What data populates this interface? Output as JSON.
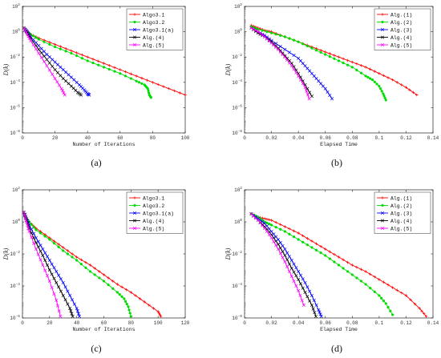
{
  "chart_data": [
    {
      "type": "line",
      "caption": "(a)",
      "ylabel": "D(k)",
      "xlabel": "Number of Iterations",
      "xlim": [
        0,
        100
      ],
      "xticks": [
        0,
        20,
        40,
        60,
        80,
        100
      ],
      "xtick_labels": [
        "0",
        "20",
        "40",
        "60",
        "80",
        "100"
      ],
      "ylim_log10": [
        -8,
        2
      ],
      "yscale": "log",
      "yticks_exp": [
        -8,
        -6,
        -4,
        -2,
        0,
        2
      ],
      "legend_position": "top-right",
      "colors": [
        "#ff0000",
        "#00dd00",
        "#0000ff",
        "#000000",
        "#ff00ff"
      ],
      "markers": [
        "plus",
        "circle",
        "x",
        "x",
        "x"
      ],
      "legend": [
        "Algo3.1",
        "Algo3.2",
        "Algo3.1(a)",
        "Alg.(4)",
        "Alg.(5)"
      ],
      "series": [
        {
          "name": "Algo3.1",
          "x": [
            1,
            2,
            5,
            10,
            20,
            30,
            40,
            50,
            60,
            70,
            80,
            90,
            100
          ],
          "y_log10": [
            0.3,
            0.1,
            -0.2,
            -0.5,
            -1.0,
            -1.5,
            -2.0,
            -2.5,
            -3.0,
            -3.5,
            -4.0,
            -4.5,
            -5.0
          ]
        },
        {
          "name": "Algo3.2",
          "x": [
            1,
            2,
            5,
            10,
            20,
            30,
            40,
            50,
            60,
            70,
            75,
            77,
            78,
            79
          ],
          "y_log10": [
            0.3,
            0.1,
            -0.2,
            -0.6,
            -1.2,
            -1.7,
            -2.3,
            -2.8,
            -3.3,
            -3.9,
            -4.2,
            -4.5,
            -5.0,
            -5.2
          ]
        },
        {
          "name": "Algo3.1(a)",
          "x": [
            1,
            3,
            5,
            10,
            15,
            20,
            25,
            30,
            35,
            38,
            40,
            41
          ],
          "y_log10": [
            0.3,
            0.0,
            -0.4,
            -1.1,
            -1.8,
            -2.4,
            -3.0,
            -3.6,
            -4.2,
            -4.6,
            -4.9,
            -5.0
          ]
        },
        {
          "name": "Alg.(4)",
          "x": [
            1,
            3,
            5,
            10,
            15,
            20,
            25,
            30,
            34,
            36
          ],
          "y_log10": [
            0.3,
            -0.1,
            -0.5,
            -1.4,
            -2.2,
            -3.0,
            -3.7,
            -4.3,
            -4.8,
            -5.0
          ]
        },
        {
          "name": "Alg.(5)",
          "x": [
            1,
            3,
            5,
            10,
            15,
            20,
            24,
            26
          ],
          "y_log10": [
            0.3,
            -0.2,
            -0.7,
            -1.7,
            -2.7,
            -3.7,
            -4.5,
            -5.0
          ]
        }
      ]
    },
    {
      "type": "line",
      "caption": "(b)",
      "ylabel": "D(k)",
      "xlabel": "Elapsed Time",
      "xlim": [
        0,
        0.14
      ],
      "xticks": [
        0,
        0.02,
        0.04,
        0.06,
        0.08,
        0.1,
        0.12,
        0.14
      ],
      "xtick_labels": [
        "0",
        "0.02",
        "0.04",
        "0.06",
        "0.08",
        "0.1",
        "0.12",
        "0.14"
      ],
      "ylim_log10": [
        -8,
        2
      ],
      "yscale": "log",
      "yticks_exp": [
        -8,
        -6,
        -4,
        -2,
        0,
        2
      ],
      "legend_position": "top-right",
      "colors": [
        "#ff0000",
        "#00dd00",
        "#0000ff",
        "#000000",
        "#ff00ff"
      ],
      "markers": [
        "plus",
        "circle",
        "x",
        "x",
        "x"
      ],
      "legend": [
        "Alg.(1)",
        "Alg.(2)",
        "Alg.(3)",
        "Alg.(4)",
        "Alg.(5)"
      ],
      "series": [
        {
          "name": "Alg.(1)",
          "x": [
            0.005,
            0.01,
            0.015,
            0.02,
            0.03,
            0.04,
            0.05,
            0.06,
            0.07,
            0.08,
            0.09,
            0.1,
            0.11,
            0.12,
            0.128
          ],
          "y_log10": [
            0.5,
            0.3,
            0.1,
            0.0,
            -0.4,
            -0.8,
            -1.2,
            -1.6,
            -2.0,
            -2.4,
            -2.8,
            -3.3,
            -3.8,
            -4.4,
            -5.0
          ]
        },
        {
          "name": "Alg.(2)",
          "x": [
            0.005,
            0.01,
            0.02,
            0.03,
            0.04,
            0.05,
            0.06,
            0.07,
            0.08,
            0.09,
            0.095,
            0.1,
            0.103,
            0.105
          ],
          "y_log10": [
            0.4,
            0.2,
            -0.1,
            -0.4,
            -0.8,
            -1.3,
            -1.8,
            -2.3,
            -2.8,
            -3.5,
            -3.8,
            -4.3,
            -4.9,
            -5.4
          ]
        },
        {
          "name": "Alg.(3)",
          "x": [
            0.005,
            0.01,
            0.015,
            0.02,
            0.03,
            0.04,
            0.045,
            0.05,
            0.055,
            0.06,
            0.065
          ],
          "y_log10": [
            0.3,
            0.0,
            -0.3,
            -0.7,
            -1.4,
            -2.1,
            -2.7,
            -3.3,
            -3.9,
            -4.5,
            -5.3
          ]
        },
        {
          "name": "Alg.(4)",
          "x": [
            0.005,
            0.01,
            0.015,
            0.02,
            0.025,
            0.03,
            0.035,
            0.04,
            0.045,
            0.05
          ],
          "y_log10": [
            0.3,
            -0.1,
            -0.4,
            -0.8,
            -1.3,
            -1.9,
            -2.5,
            -3.3,
            -4.2,
            -5.1
          ]
        },
        {
          "name": "Alg.(5)",
          "x": [
            0.005,
            0.01,
            0.015,
            0.02,
            0.025,
            0.03,
            0.035,
            0.04,
            0.045,
            0.048
          ],
          "y_log10": [
            0.3,
            0.0,
            -0.4,
            -0.9,
            -1.4,
            -2.0,
            -2.7,
            -3.5,
            -4.4,
            -5.3
          ]
        }
      ]
    },
    {
      "type": "line",
      "caption": "(c)",
      "ylabel": "D(k)",
      "xlabel": "Number of Iterations",
      "xlim": [
        0,
        120
      ],
      "xticks": [
        0,
        20,
        40,
        60,
        80,
        100,
        120
      ],
      "xtick_labels": [
        "0",
        "20",
        "40",
        "60",
        "80",
        "100",
        "120"
      ],
      "ylim_log10": [
        -6,
        2
      ],
      "yscale": "log",
      "yticks_exp": [
        -6,
        -4,
        -2,
        0,
        2
      ],
      "legend_position": "top-right",
      "colors": [
        "#ff0000",
        "#00dd00",
        "#0000ff",
        "#000000",
        "#ff00ff"
      ],
      "markers": [
        "plus",
        "circle",
        "x",
        "x",
        "x"
      ],
      "legend": [
        "Algo3.1",
        "Algo3.2",
        "Algo3.1(a)",
        "Alg.(4)",
        "Alg.(5)"
      ],
      "series": [
        {
          "name": "Algo3.1",
          "x": [
            1,
            2,
            5,
            10,
            20,
            30,
            40,
            50,
            60,
            70,
            80,
            90,
            100,
            102
          ],
          "y_log10": [
            0.6,
            0.3,
            0.0,
            -0.4,
            -1.0,
            -1.6,
            -2.2,
            -2.7,
            -3.3,
            -3.9,
            -4.4,
            -5.0,
            -5.6,
            -5.9
          ]
        },
        {
          "name": "Algo3.2",
          "x": [
            1,
            2,
            5,
            10,
            20,
            30,
            40,
            50,
            60,
            70,
            75,
            78,
            80
          ],
          "y_log10": [
            0.6,
            0.3,
            0.0,
            -0.5,
            -1.1,
            -1.8,
            -2.4,
            -3.1,
            -3.7,
            -4.4,
            -4.8,
            -5.3,
            -5.9
          ]
        },
        {
          "name": "Algo3.1(a)",
          "x": [
            1,
            3,
            5,
            10,
            15,
            20,
            25,
            30,
            35,
            40,
            42
          ],
          "y_log10": [
            0.6,
            0.2,
            -0.2,
            -1.0,
            -1.7,
            -2.4,
            -3.1,
            -3.8,
            -4.6,
            -5.4,
            -5.9
          ]
        },
        {
          "name": "Alg.(4)",
          "x": [
            1,
            3,
            5,
            10,
            15,
            20,
            25,
            30,
            35,
            37
          ],
          "y_log10": [
            0.6,
            0.1,
            -0.4,
            -1.3,
            -2.1,
            -3.0,
            -3.8,
            -4.6,
            -5.4,
            -5.9
          ]
        },
        {
          "name": "Alg.(5)",
          "x": [
            1,
            3,
            5,
            10,
            15,
            20,
            25,
            28
          ],
          "y_log10": [
            0.6,
            0.0,
            -0.6,
            -1.7,
            -2.7,
            -3.7,
            -4.9,
            -5.9
          ]
        }
      ]
    },
    {
      "type": "line",
      "caption": "(d)",
      "ylabel": "D(k)",
      "xlabel": "Elapsed Time",
      "xlim": [
        0,
        0.14
      ],
      "xticks": [
        0,
        0.02,
        0.04,
        0.06,
        0.08,
        0.1,
        0.12,
        0.14
      ],
      "xtick_labels": [
        "0",
        "0.02",
        "0.04",
        "0.06",
        "0.08",
        "0.1",
        "0.12",
        "0.14"
      ],
      "ylim_log10": [
        -6,
        2
      ],
      "yscale": "log",
      "yticks_exp": [
        -6,
        -4,
        -2,
        0,
        2
      ],
      "legend_position": "top-right",
      "colors": [
        "#ff0000",
        "#00dd00",
        "#0000ff",
        "#000000",
        "#ff00ff"
      ],
      "markers": [
        "plus",
        "circle",
        "x",
        "x",
        "x"
      ],
      "legend": [
        "Alg.(1)",
        "Alg.(2)",
        "Alg.(3)",
        "Alg.(4)",
        "Alg.(5)"
      ],
      "series": [
        {
          "name": "Alg.(1)",
          "x": [
            0.005,
            0.01,
            0.015,
            0.02,
            0.03,
            0.04,
            0.05,
            0.06,
            0.07,
            0.08,
            0.09,
            0.1,
            0.11,
            0.12,
            0.13,
            0.135
          ],
          "y_log10": [
            0.5,
            0.3,
            0.2,
            0.1,
            -0.3,
            -0.7,
            -1.2,
            -1.7,
            -2.2,
            -2.7,
            -3.1,
            -3.6,
            -4.1,
            -4.6,
            -5.4,
            -5.9
          ]
        },
        {
          "name": "Alg.(2)",
          "x": [
            0.005,
            0.01,
            0.015,
            0.02,
            0.03,
            0.04,
            0.05,
            0.06,
            0.07,
            0.08,
            0.09,
            0.1,
            0.105,
            0.11
          ],
          "y_log10": [
            0.5,
            0.3,
            0.0,
            -0.2,
            -0.6,
            -1.1,
            -1.6,
            -2.1,
            -2.7,
            -3.3,
            -3.9,
            -4.6,
            -5.1,
            -5.8
          ]
        },
        {
          "name": "Alg.(3)",
          "x": [
            0.005,
            0.01,
            0.015,
            0.02,
            0.025,
            0.03,
            0.035,
            0.04,
            0.045,
            0.05,
            0.055,
            0.057
          ],
          "y_log10": [
            0.5,
            0.2,
            -0.1,
            -0.6,
            -1.1,
            -1.7,
            -2.4,
            -3.1,
            -3.8,
            -4.6,
            -5.5,
            -5.9
          ]
        },
        {
          "name": "Alg.(4)",
          "x": [
            0.005,
            0.01,
            0.015,
            0.02,
            0.025,
            0.03,
            0.035,
            0.04,
            0.045,
            0.05,
            0.053
          ],
          "y_log10": [
            0.5,
            0.1,
            -0.3,
            -0.8,
            -1.4,
            -2.1,
            -2.9,
            -3.6,
            -4.4,
            -5.2,
            -5.9
          ]
        },
        {
          "name": "Alg.(5)",
          "x": [
            0.005,
            0.01,
            0.015,
            0.02,
            0.025,
            0.03,
            0.035,
            0.04,
            0.044
          ],
          "y_log10": [
            0.5,
            0.1,
            -0.4,
            -1.0,
            -1.7,
            -2.5,
            -3.4,
            -4.3,
            -5.2
          ]
        }
      ]
    }
  ]
}
